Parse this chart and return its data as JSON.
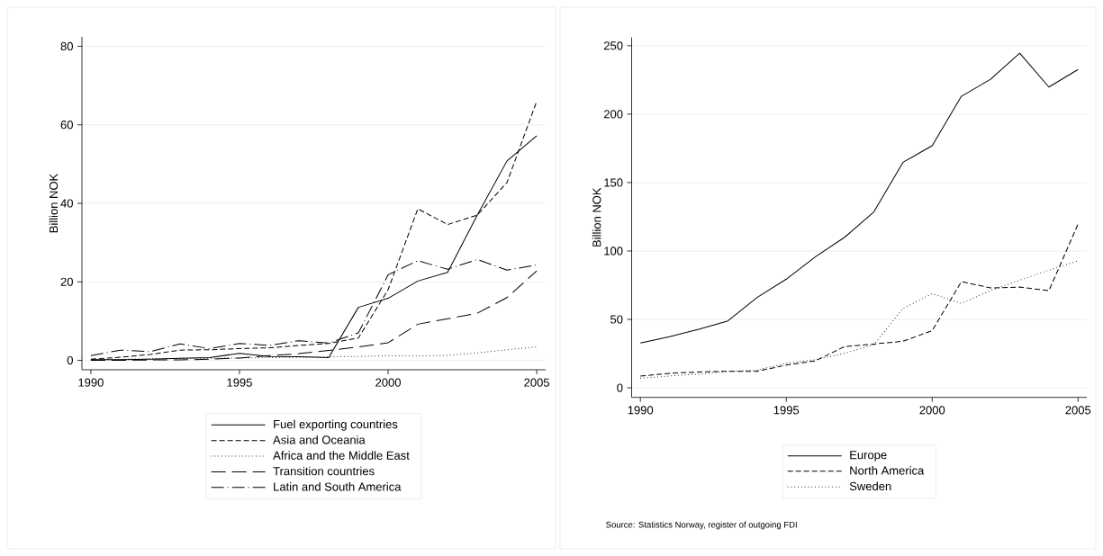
{
  "chart_data": [
    {
      "type": "line",
      "ylabel": "Billion NOK",
      "x": [
        1990,
        1991,
        1992,
        1993,
        1994,
        1995,
        1996,
        1997,
        1998,
        1999,
        2000,
        2001,
        2002,
        2003,
        2004,
        2005
      ],
      "xlim": [
        1989.7,
        2005.3
      ],
      "ylim": [
        -2.4,
        82.4
      ],
      "xticks": [
        1990,
        1995,
        2000,
        2005
      ],
      "yticks": [
        0,
        20,
        40,
        60,
        80
      ],
      "grid": "y",
      "legend": "bottom",
      "series": [
        {
          "name": "Fuel exporting countries",
          "color": "#000000",
          "line_style": "solid",
          "values": [
            0.2,
            0.2,
            0.3,
            0.5,
            0.7,
            1.8,
            1.0,
            0.9,
            0.7,
            13.5,
            15.8,
            20.2,
            22.4,
            37,
            50.8,
            57.2
          ]
        },
        {
          "name": "Asia and Oceania",
          "color": "#000000",
          "line_style": "dashed",
          "values": [
            0.3,
            0.8,
            1.5,
            2.6,
            2.7,
            3.0,
            3.2,
            3.8,
            4.3,
            5.7,
            18,
            38.6,
            34.6,
            37,
            45.3,
            66
          ]
        },
        {
          "name": "Africa and the Middle East",
          "color": "#000000",
          "line_style": "dotted",
          "values": [
            0.2,
            0.3,
            0.4,
            0.5,
            0.5,
            0.6,
            0.7,
            0.8,
            0.9,
            1.0,
            1.2,
            1.1,
            1.3,
            1.9,
            2.7,
            3.4
          ]
        },
        {
          "name": "Transition countries",
          "color": "#000000",
          "line_style": "longdash",
          "values": [
            0,
            0,
            0.1,
            0.1,
            0.3,
            0.6,
            1.2,
            1.7,
            2.5,
            3.4,
            4.5,
            9.2,
            10.6,
            12,
            16,
            22.8
          ]
        },
        {
          "name": "Latin and South America",
          "color": "#000000",
          "line_style": "dashdot",
          "values": [
            1.2,
            2.6,
            2.2,
            4.2,
            3.0,
            4.3,
            3.8,
            5.0,
            4.4,
            7.0,
            21.8,
            25.4,
            23.2,
            25.7,
            23.0,
            24.3
          ]
        }
      ]
    },
    {
      "type": "line",
      "ylabel": "Billion NOK",
      "x": [
        1990,
        1991,
        1992,
        1993,
        1994,
        1995,
        1996,
        1997,
        1998,
        1999,
        2000,
        2001,
        2002,
        2003,
        2004,
        2005
      ],
      "xlim": [
        1989.7,
        2005.3
      ],
      "ylim": [
        -7,
        256
      ],
      "xticks": [
        1990,
        1995,
        2000,
        2005
      ],
      "yticks": [
        0,
        50,
        100,
        150,
        200,
        250
      ],
      "grid": "y",
      "legend": "bottom",
      "annotations": [
        "Source: Statistics Norway, register of outgoing FDI"
      ],
      "series": [
        {
          "name": "Europe",
          "color": "#000000",
          "line_style": "solid",
          "values": [
            32.8,
            37.3,
            42.8,
            48.9,
            66,
            79.4,
            95.8,
            110,
            128.5,
            164.8,
            176.9,
            213,
            225.5,
            244.5,
            219.8,
            232.6
          ]
        },
        {
          "name": "North America",
          "color": "#000000",
          "line_style": "dashed",
          "values": [
            8.6,
            10.6,
            11.6,
            12.1,
            12.1,
            16.6,
            19.7,
            30.2,
            32,
            34,
            41.8,
            77.6,
            73,
            73.6,
            71,
            119.7
          ]
        },
        {
          "name": "Sweden",
          "color": "#000000",
          "line_style": "dotted",
          "values": [
            7,
            8.6,
            10,
            12,
            13,
            18,
            20.6,
            25.2,
            31.5,
            58,
            68.8,
            61.7,
            71,
            78.6,
            86,
            92.7
          ]
        }
      ]
    }
  ]
}
